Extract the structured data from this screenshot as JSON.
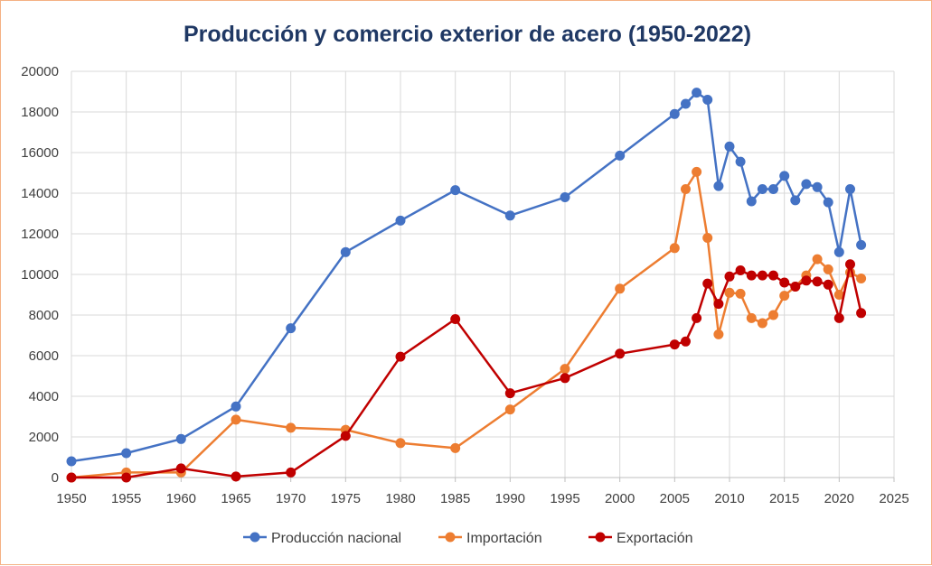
{
  "chart_data": {
    "type": "line",
    "title": "Producción y comercio exterior de acero (1950-2022)",
    "xlabel": "",
    "ylabel": "",
    "xlim": [
      1950,
      2025
    ],
    "ylim": [
      0,
      20000
    ],
    "grid": true,
    "legend_position": "bottom",
    "x_ticks": [
      "1950",
      "1955",
      "1960",
      "1965",
      "1970",
      "1975",
      "1980",
      "1985",
      "1990",
      "1995",
      "2000",
      "2005",
      "2010",
      "2015",
      "2020",
      "2025"
    ],
    "y_ticks": [
      "0",
      "2000",
      "4000",
      "6000",
      "8000",
      "10000",
      "12000",
      "14000",
      "16000",
      "18000",
      "20000"
    ],
    "series": [
      {
        "name": "Producción nacional",
        "color": "#4472c4",
        "marker_fill": "#4472c4",
        "x": [
          1950,
          1955,
          1960,
          1965,
          1970,
          1975,
          1980,
          1985,
          1990,
          1995,
          2000,
          2005,
          2006,
          2007,
          2008,
          2009,
          2010,
          2011,
          2012,
          2013,
          2014,
          2015,
          2016,
          2017,
          2018,
          2019,
          2020,
          2021,
          2022
        ],
        "values": [
          800,
          1200,
          1900,
          3500,
          7350,
          11100,
          12650,
          14150,
          12900,
          13800,
          15850,
          17900,
          18400,
          18950,
          18600,
          14350,
          16300,
          15550,
          13600,
          14200,
          14200,
          14850,
          13650,
          14450,
          14300,
          13550,
          11100,
          14200,
          11450
        ]
      },
      {
        "name": "Importación",
        "color": "#ed7d31",
        "marker_fill": "#ed7d31",
        "x": [
          1950,
          1955,
          1960,
          1965,
          1970,
          1975,
          1980,
          1985,
          1990,
          1995,
          2000,
          2005,
          2006,
          2007,
          2008,
          2009,
          2010,
          2011,
          2012,
          2013,
          2014,
          2015,
          2016,
          2017,
          2018,
          2019,
          2020,
          2021,
          2022
        ],
        "values": [
          0,
          250,
          250,
          2850,
          2450,
          2350,
          1700,
          1450,
          3350,
          5350,
          9300,
          11300,
          14200,
          15050,
          11800,
          7050,
          9100,
          9050,
          7850,
          7600,
          8000,
          8950,
          9400,
          9950,
          10750,
          10250,
          9000,
          10100,
          9800
        ]
      },
      {
        "name": "Exportación",
        "color": "#c00000",
        "marker_fill": "#c00000",
        "x": [
          1950,
          1955,
          1960,
          1965,
          1970,
          1975,
          1980,
          1985,
          1990,
          1995,
          2000,
          2005,
          2006,
          2007,
          2008,
          2009,
          2010,
          2011,
          2012,
          2013,
          2014,
          2015,
          2016,
          2017,
          2018,
          2019,
          2020,
          2021,
          2022
        ],
        "values": [
          0,
          0,
          450,
          50,
          250,
          2050,
          5950,
          7800,
          4150,
          4900,
          6100,
          6550,
          6700,
          7850,
          9550,
          8550,
          9900,
          10200,
          9950,
          9950,
          9950,
          9600,
          9400,
          9700,
          9650,
          9500,
          7850,
          10500,
          8100
        ]
      }
    ]
  }
}
